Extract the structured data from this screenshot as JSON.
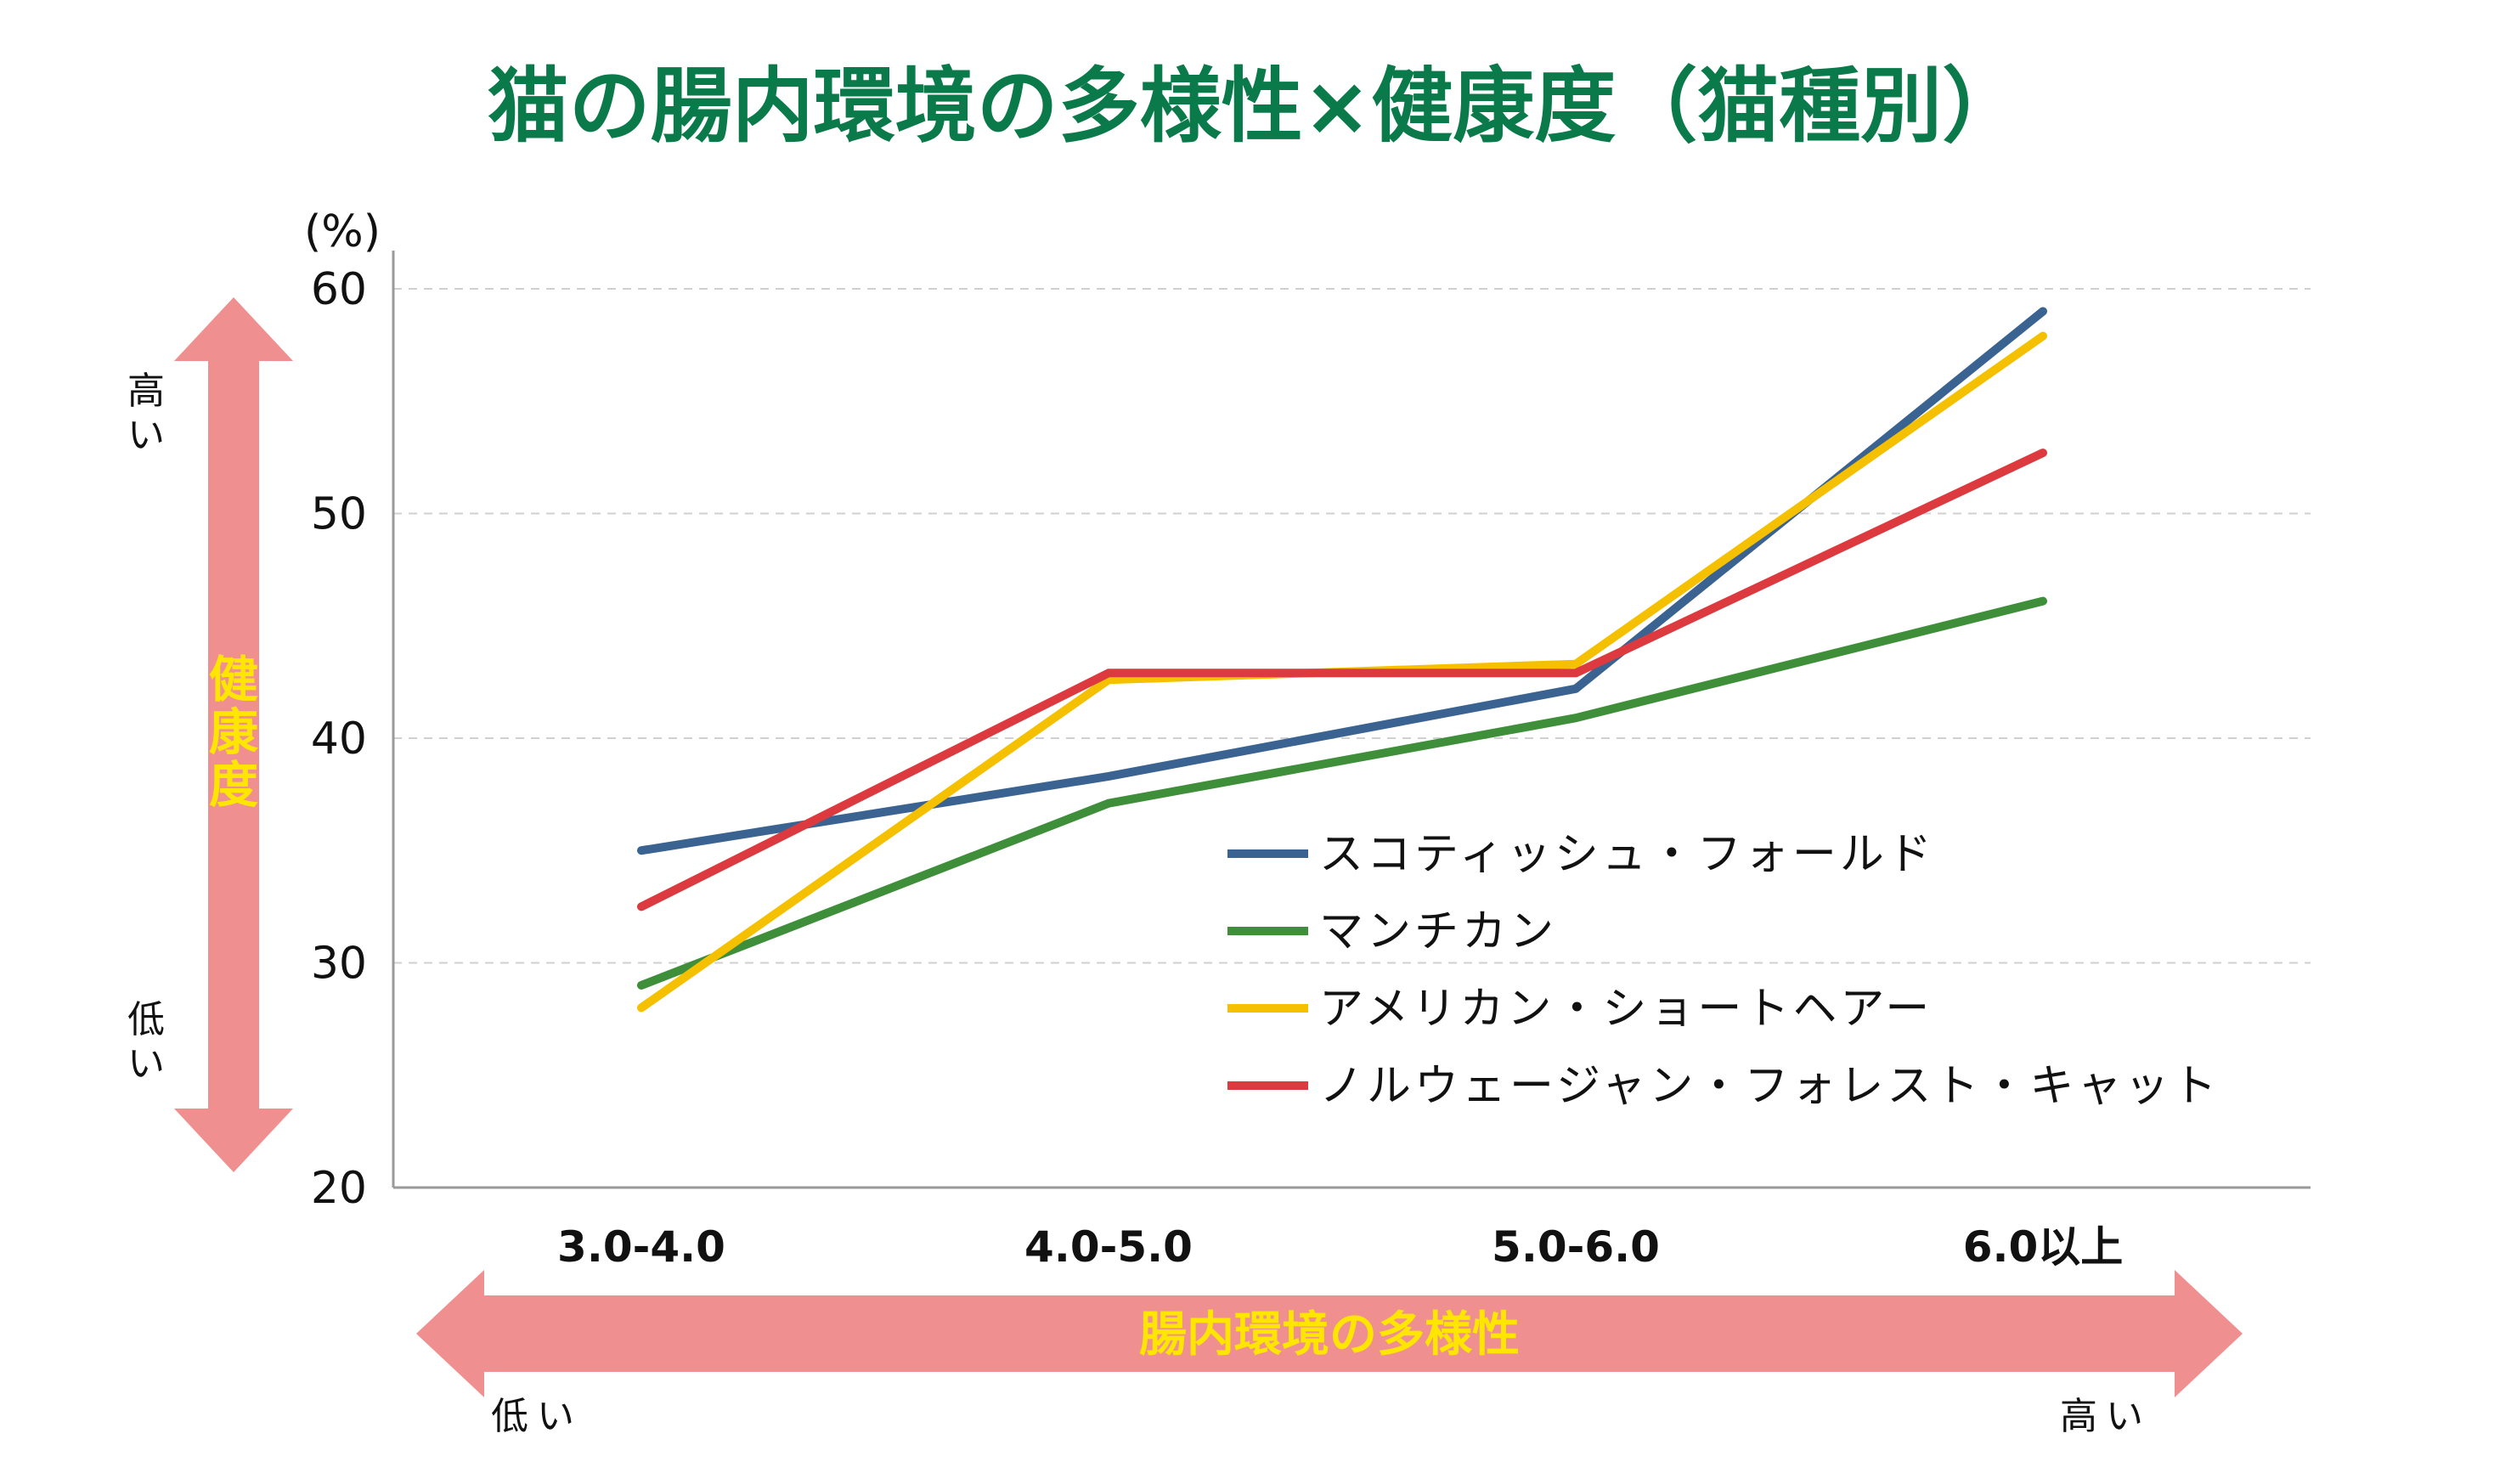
{
  "title": "猫の腸内環境の多様性×健康度（猫種別）",
  "colors": {
    "title": "#0a7a4a",
    "arrow": "#f08f8f",
    "arrow_label": "#ffe600",
    "grid": "#d0d0d0",
    "axis": "#9a9a9a"
  },
  "y_axis": {
    "unit": "(%)",
    "label": "健康度",
    "high": "高い",
    "low": "低い"
  },
  "x_axis": {
    "label": "腸内環境の多様性",
    "low": "低い",
    "high": "高い"
  },
  "chart_data": {
    "type": "line",
    "title": "猫の腸内環境の多様性×健康度（猫種別）",
    "xlabel": "腸内環境の多様性",
    "ylabel": "健康度",
    "y_unit": "%",
    "categories": [
      "3.0-4.0",
      "4.0-5.0",
      "5.0-6.0",
      "6.0以上"
    ],
    "ylim": [
      20,
      60
    ],
    "yticks": [
      20,
      30,
      40,
      50,
      60
    ],
    "grid": true,
    "legend_position": "center-right",
    "series": [
      {
        "name": "スコティッシュ・フォールド",
        "color": "#3a6391",
        "values": [
          35,
          38.3,
          42.2,
          59
        ]
      },
      {
        "name": "マンチカン",
        "color": "#3e8e3a",
        "values": [
          29,
          37.1,
          40.9,
          46.1
        ]
      },
      {
        "name": "アメリカン・ショートヘアー",
        "color": "#f5c000",
        "values": [
          28,
          42.6,
          43.3,
          57.9
        ]
      },
      {
        "name": "ノルウェージャン・フォレスト・キャット",
        "color": "#dc3a3f",
        "values": [
          32.5,
          42.9,
          42.9,
          52.7
        ]
      }
    ]
  }
}
